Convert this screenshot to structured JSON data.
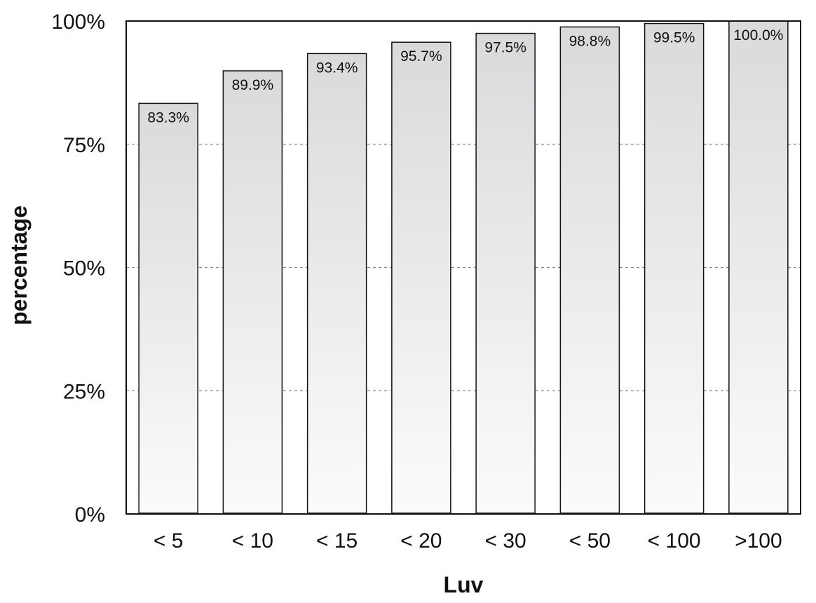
{
  "chart_data": {
    "type": "bar",
    "categories": [
      "< 5",
      "< 10",
      "< 15",
      "< 20",
      "< 30",
      "< 50",
      "< 100",
      ">100"
    ],
    "values": [
      83.3,
      89.9,
      93.4,
      95.7,
      97.5,
      98.8,
      99.5,
      100.0
    ],
    "data_labels": [
      "83.3%",
      "89.9%",
      "93.4%",
      "95.7%",
      "97.5%",
      "98.8%",
      "99.5%",
      "100.0%"
    ],
    "xlabel": "Luv",
    "ylabel": "percentage",
    "ylim": [
      0,
      100
    ],
    "yticks": [
      0,
      25,
      50,
      75,
      100
    ],
    "ytick_labels": [
      "0%",
      "25%",
      "50%",
      "75%",
      "100%"
    ],
    "grid": "horizontal dashed at 25%, 50%, 75%",
    "legend": "none",
    "colors": {
      "bar_top": "#d9dadc",
      "bar_bottom": "#fbfbfb",
      "bar_outline": "#111111",
      "grid": "#888888"
    }
  }
}
